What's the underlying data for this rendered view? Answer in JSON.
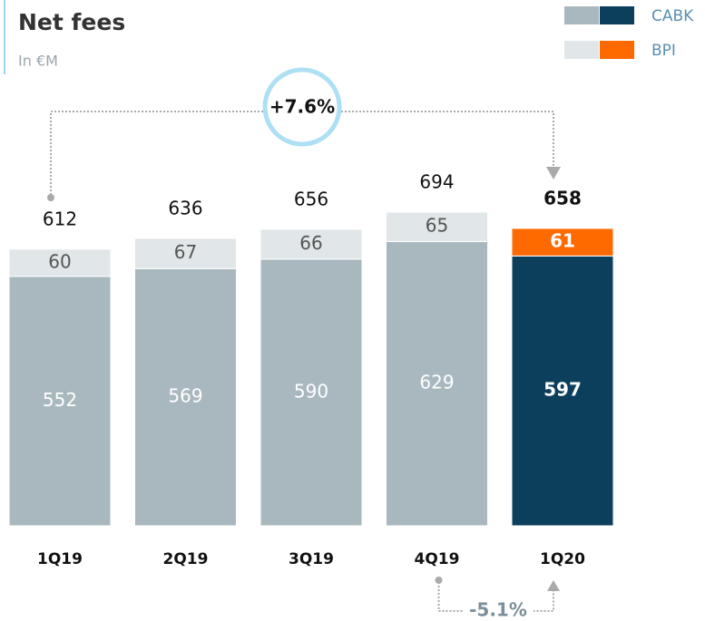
{
  "chart_data": {
    "type": "stacked_bar",
    "title": "Net fees",
    "subtitle": "In €M",
    "categories": [
      "1Q19",
      "2Q19",
      "3Q19",
      "4Q19",
      "1Q20"
    ],
    "series": [
      {
        "name": "CABK",
        "values": [
          552,
          569,
          590,
          629,
          597
        ],
        "colors": [
          "#a9b8bf",
          "#a9b8bf",
          "#a9b8bf",
          "#a9b8bf",
          "#0c3f5c"
        ]
      },
      {
        "name": "BPI",
        "values": [
          60,
          67,
          66,
          65,
          61
        ],
        "colors": [
          "#e1e6e9",
          "#e1e6e9",
          "#e1e6e9",
          "#e1e6e9",
          "#ff6a00"
        ]
      }
    ],
    "totals": [
      612,
      636,
      656,
      694,
      658
    ],
    "annotations": [
      "+7.6%",
      "-5.1%"
    ],
    "legend": "top-right"
  }
}
